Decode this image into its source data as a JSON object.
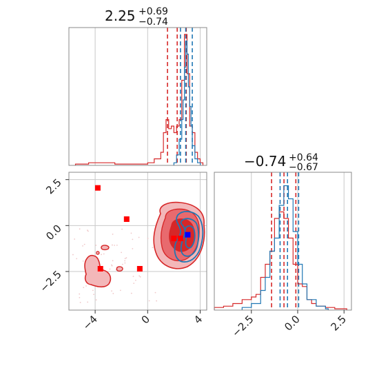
{
  "chart_data": {
    "type": "corner",
    "colors": {
      "red": "#d62728",
      "blue": "#1f77b4",
      "light_red": "#f2b8ba"
    },
    "grid": true,
    "panels": [
      {
        "id": "hist_param1",
        "type": "histogram",
        "title": {
          "value": "2.25",
          "sup": "+0.69",
          "sub": "−0.74"
        },
        "xlim": [
          -6,
          4.5
        ],
        "red_quantile_lines": [
          1.51,
          2.25,
          2.94
        ],
        "blue_quantile_lines": [
          2.5,
          2.9,
          3.4
        ],
        "red_hist": {
          "x": [
            -5.5,
            -5.0,
            -4.5,
            -4.0,
            -3.5,
            -3.0,
            -2.5,
            -2.0,
            -1.5,
            -1.0,
            -0.5,
            0.0,
            0.5,
            1.0,
            1.2,
            1.4,
            1.6,
            1.8,
            2.0,
            2.2,
            2.4,
            2.6,
            2.8,
            3.0,
            3.2,
            3.4,
            3.6,
            3.8,
            4.0
          ],
          "density": [
            0.01,
            0.01,
            0.02,
            0.02,
            0.02,
            0.02,
            0.01,
            0.01,
            0.01,
            0.01,
            0.01,
            0.02,
            0.05,
            0.1,
            0.25,
            0.35,
            0.28,
            0.3,
            0.25,
            0.3,
            0.35,
            0.65,
            1.0,
            0.7,
            0.3,
            0.25,
            0.1,
            0.05,
            0.02
          ]
        },
        "blue_hist": {
          "x": [
            2.0,
            2.2,
            2.4,
            2.6,
            2.7,
            2.8,
            2.9,
            3.0,
            3.1,
            3.2,
            3.3,
            3.4,
            3.6,
            3.8
          ],
          "density": [
            0.02,
            0.08,
            0.2,
            0.35,
            0.5,
            0.75,
            0.95,
            0.85,
            0.6,
            0.45,
            0.3,
            0.15,
            0.05,
            0.02
          ]
        }
      },
      {
        "id": "hist_param2",
        "type": "histogram",
        "title": {
          "value": "−0.74",
          "sup": "+0.64",
          "sub": "−0.67"
        },
        "xlim": [
          -4.5,
          2.9
        ],
        "xticks": [
          "−2.5",
          "0.0",
          "2.5"
        ],
        "red_quantile_lines": [
          -1.41,
          -0.74,
          -0.1
        ],
        "blue_quantile_lines": [
          -0.95,
          -0.55,
          0.05
        ],
        "red_hist": {
          "x": [
            -4.5,
            -4.0,
            -3.5,
            -3.0,
            -2.5,
            -2.25,
            -2.0,
            -1.75,
            -1.5,
            -1.25,
            -1.0,
            -0.75,
            -0.5,
            -0.25,
            0.0,
            0.25,
            0.5,
            0.75,
            1.0,
            1.5,
            2.0,
            2.5
          ],
          "density": [
            0.02,
            0.03,
            0.05,
            0.08,
            0.1,
            0.12,
            0.25,
            0.35,
            0.45,
            0.7,
            0.75,
            0.7,
            0.55,
            0.35,
            0.2,
            0.18,
            0.08,
            0.05,
            0.03,
            0.02,
            0.01,
            0.01
          ]
        },
        "blue_hist": {
          "x": [
            -3.0,
            -2.5,
            -2.0,
            -1.75,
            -1.5,
            -1.25,
            -1.0,
            -0.75,
            -0.5,
            -0.25,
            0.0,
            0.25,
            0.5,
            1.0,
            1.5
          ],
          "density": [
            0.02,
            0.05,
            0.15,
            0.25,
            0.45,
            0.55,
            0.8,
            0.95,
            0.85,
            0.6,
            0.35,
            0.2,
            0.08,
            0.03,
            0.01
          ]
        }
      },
      {
        "id": "joint",
        "type": "contour",
        "xlim": [
          -6,
          4.5
        ],
        "ylim": [
          -4.6,
          2.9
        ],
        "xticks": [
          "−4",
          "0",
          "4"
        ],
        "yticks": [
          "2.5",
          "0.0",
          "−2.5"
        ],
        "red_markers": [
          {
            "x": -3.8,
            "y": 2.05
          },
          {
            "x": -1.6,
            "y": 0.35
          },
          {
            "x": -3.6,
            "y": -2.35
          },
          {
            "x": -0.6,
            "y": -2.35
          },
          {
            "x": 2.0,
            "y": -0.7
          },
          {
            "x": 2.5,
            "y": -0.7
          }
        ],
        "blue_markers": [
          {
            "x": 3.05,
            "y": -0.5
          }
        ]
      }
    ]
  }
}
